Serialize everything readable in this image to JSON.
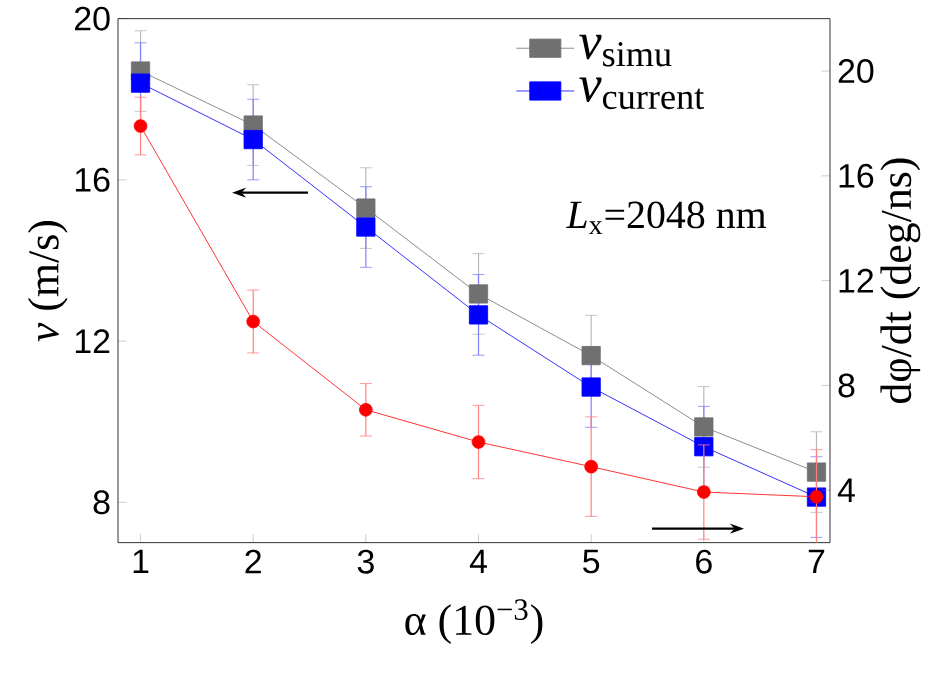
{
  "chart_data": {
    "type": "line",
    "xlabel": "α (10$^{−3}$)",
    "ylabel": "*v* (m/s)",
    "y2label": "dφ/dt (deg/ns)",
    "x": [
      1,
      2,
      3,
      4,
      5,
      6,
      7
    ],
    "xlim": [
      0.8,
      7.12
    ],
    "xticks": [
      1,
      2,
      3,
      4,
      5,
      6,
      7
    ],
    "ylim": [
      7,
      20
    ],
    "yticks": [
      8,
      12,
      16,
      20
    ],
    "y2lim": [
      2,
      22
    ],
    "y2ticks": [
      4,
      8,
      12,
      16,
      20
    ],
    "series": [
      {
        "name": "*v*$_{simu}$",
        "color": "#707070",
        "marker": "square",
        "values": [
          18.7,
          17.36,
          15.3,
          13.17,
          11.64,
          9.87,
          8.75
        ],
        "errors": [
          1,
          1,
          1,
          1,
          1,
          1,
          1
        ]
      },
      {
        "name": "*v*$_{current}$",
        "color": "#0000ff",
        "marker": "square",
        "values": [
          18.4,
          17.0,
          14.83,
          12.65,
          10.86,
          9.38,
          8.13
        ],
        "errors": [
          1,
          1,
          1,
          1,
          1,
          1,
          1
        ]
      },
      {
        "axis": "y2",
        "color": "#ff0000",
        "marker": "circle",
        "values": [
          17.9,
          10.44,
          7.07,
          5.84,
          4.9,
          3.93,
          3.75
        ],
        "errors": [
          1.1,
          1.2,
          1.0,
          1.4,
          1.9,
          1.8,
          1.8
        ]
      }
    ],
    "annotations": [
      "*L*$_{x}$=2048 nm"
    ],
    "legend": "top right"
  }
}
